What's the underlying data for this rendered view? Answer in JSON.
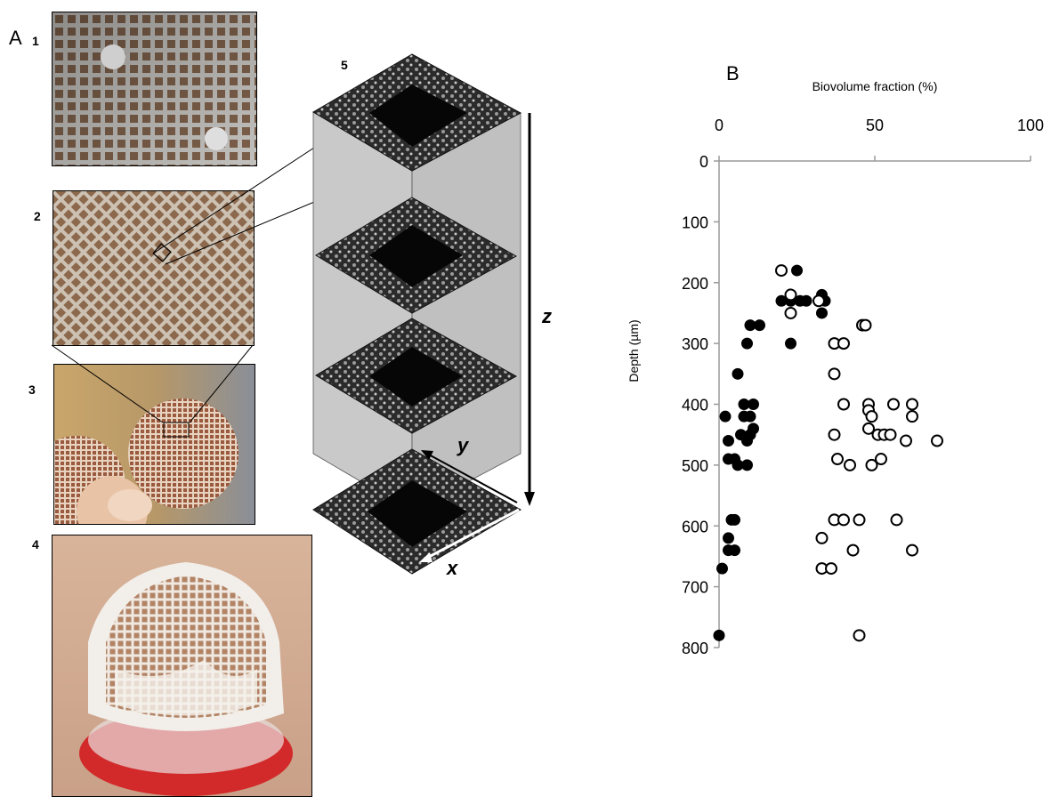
{
  "panel_a": {
    "letter": "A",
    "labels": [
      "1",
      "2",
      "3",
      "4",
      "5"
    ],
    "axes": {
      "x": "x",
      "y": "y",
      "z": "z"
    }
  },
  "panel_b": {
    "letter": "B"
  },
  "chart_data": {
    "type": "scatter",
    "title": "",
    "xlabel": "Biovolume fraction (%)",
    "ylabel": "Depth (µm)",
    "xlim": [
      0,
      100
    ],
    "ylim": [
      800,
      0
    ],
    "x_axis_position": "top",
    "y_axis_inverted": true,
    "xticks": [
      0,
      50,
      100
    ],
    "yticks": [
      0,
      100,
      200,
      300,
      400,
      500,
      600,
      700,
      800
    ],
    "xtick_labels": [
      "0",
      "50",
      "100"
    ],
    "ytick_labels": [
      "0",
      "100",
      "200",
      "300",
      "400",
      "500",
      "600",
      "700",
      "800"
    ],
    "grid": false,
    "series": [
      {
        "marker": "filled-circle",
        "color": "#000000",
        "points": [
          [
            25,
            180
          ],
          [
            20,
            230
          ],
          [
            23,
            230
          ],
          [
            26,
            230
          ],
          [
            28,
            230
          ],
          [
            33,
            220
          ],
          [
            34,
            230
          ],
          [
            33,
            250
          ],
          [
            23,
            300
          ],
          [
            10,
            270
          ],
          [
            13,
            270
          ],
          [
            9,
            300
          ],
          [
            6,
            350
          ],
          [
            2,
            420
          ],
          [
            8,
            420
          ],
          [
            8,
            400
          ],
          [
            11,
            400
          ],
          [
            10,
            420
          ],
          [
            11,
            440
          ],
          [
            7,
            450
          ],
          [
            10,
            450
          ],
          [
            3,
            460
          ],
          [
            9,
            460
          ],
          [
            3,
            490
          ],
          [
            5,
            490
          ],
          [
            6,
            500
          ],
          [
            9,
            500
          ],
          [
            4,
            590
          ],
          [
            5,
            590
          ],
          [
            3,
            620
          ],
          [
            3,
            640
          ],
          [
            5,
            640
          ],
          [
            1,
            670
          ],
          [
            0,
            780
          ]
        ]
      },
      {
        "marker": "open-circle",
        "color": "#000000",
        "points": [
          [
            20,
            180
          ],
          [
            23,
            220
          ],
          [
            23,
            250
          ],
          [
            32,
            230
          ],
          [
            46,
            270
          ],
          [
            47,
            270
          ],
          [
            37,
            300
          ],
          [
            40,
            300
          ],
          [
            37,
            350
          ],
          [
            40,
            400
          ],
          [
            48,
            400
          ],
          [
            56,
            400
          ],
          [
            62,
            400
          ],
          [
            48,
            410
          ],
          [
            49,
            420
          ],
          [
            62,
            420
          ],
          [
            48,
            440
          ],
          [
            51,
            450
          ],
          [
            53,
            450
          ],
          [
            55,
            450
          ],
          [
            60,
            460
          ],
          [
            70,
            460
          ],
          [
            37,
            450
          ],
          [
            38,
            490
          ],
          [
            42,
            500
          ],
          [
            52,
            490
          ],
          [
            49,
            500
          ],
          [
            37,
            590
          ],
          [
            40,
            590
          ],
          [
            45,
            590
          ],
          [
            57,
            590
          ],
          [
            33,
            620
          ],
          [
            43,
            640
          ],
          [
            62,
            640
          ],
          [
            33,
            670
          ],
          [
            36,
            670
          ],
          [
            45,
            780
          ]
        ]
      }
    ]
  }
}
